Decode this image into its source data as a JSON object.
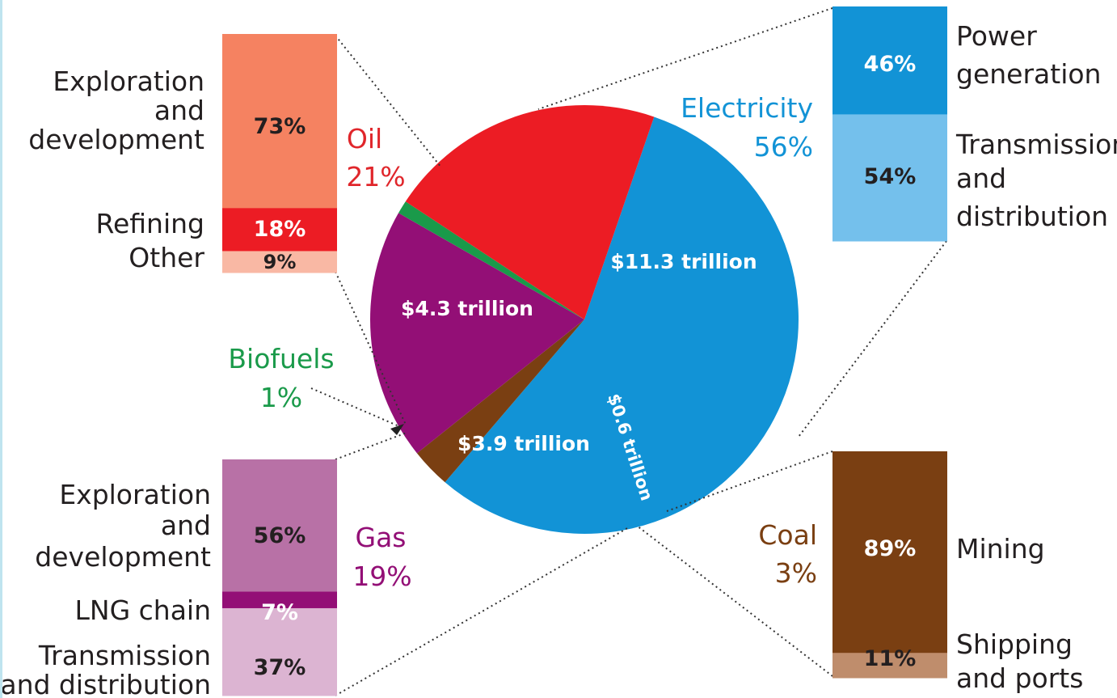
{
  "chart_data": {
    "type": "pie",
    "slices": [
      {
        "name": "Electricity",
        "percent": 56,
        "value_label": "$11.3 trillion",
        "percent_label": "56%",
        "color": "#1293d6"
      },
      {
        "name": "Coal",
        "percent": 3,
        "value_label": "$0.6 trillion",
        "percent_label": "3%",
        "color": "#7a3f12"
      },
      {
        "name": "Gas",
        "percent": 19,
        "value_label": "$3.9 trillion",
        "percent_label": "19%",
        "color": "#930f76"
      },
      {
        "name": "Biofuels",
        "percent": 1,
        "value_label": "",
        "percent_label": "1%",
        "color": "#1a9a4a"
      },
      {
        "name": "Oil",
        "percent": 21,
        "value_label": "$4.3 trillion",
        "percent_label": "21%",
        "color": "#ec1c24"
      }
    ],
    "breakdowns": {
      "oil": [
        {
          "label": "Exploration and development",
          "percent": 73,
          "percent_label": "73%",
          "color": "#f58261"
        },
        {
          "label": "Refining",
          "percent": 18,
          "percent_label": "18%",
          "color": "#ec1c24"
        },
        {
          "label": "Other",
          "percent": 9,
          "percent_label": "9%",
          "color": "#f9b8a4"
        }
      ],
      "electricity": [
        {
          "label": "Power generation",
          "percent": 46,
          "percent_label": "46%",
          "color": "#1293d6"
        },
        {
          "label": "Transmission and distribution",
          "percent": 54,
          "percent_label": "54%",
          "color": "#74c0ec"
        }
      ],
      "gas": [
        {
          "label": "Exploration and development",
          "percent": 56,
          "percent_label": "56%",
          "color": "#b871a6"
        },
        {
          "label": "LNG chain",
          "percent": 7,
          "percent_label": "7%",
          "color": "#930f76"
        },
        {
          "label": "Transmission and distribution",
          "percent": 37,
          "percent_label": "37%",
          "color": "#dcb4d2"
        }
      ],
      "coal": [
        {
          "label": "Mining",
          "percent": 89,
          "percent_label": "89%",
          "color": "#7a3f12"
        },
        {
          "label": "Shipping and ports",
          "percent": 11,
          "percent_label": "11%",
          "color": "#bf8d6c"
        }
      ]
    }
  },
  "text": {
    "oil_name": "Oil",
    "oil_pct": "21%",
    "electricity_name": "Electricity",
    "electricity_pct": "56%",
    "biofuels_name": "Biofuels",
    "biofuels_pct": "1%",
    "gas_name": "Gas",
    "gas_pct": "19%",
    "coal_name": "Coal",
    "coal_pct": "3%",
    "oil_expl_1": "Exploration",
    "oil_expl_2": "and",
    "oil_expl_3": "development",
    "oil_refining": "Refining",
    "oil_other": "Other",
    "elec_power_1": "Power",
    "elec_power_2": "generation",
    "elec_td_1": "Transmission",
    "elec_td_2": "and",
    "elec_td_3": "distribution",
    "gas_expl_1": "Exploration",
    "gas_expl_2": "and",
    "gas_expl_3": "development",
    "gas_lng": "LNG chain",
    "gas_td_1": "Transmission",
    "gas_td_2": "and distribution",
    "coal_mining": "Mining",
    "coal_ship_1": "Shipping",
    "coal_ship_2": "and ports"
  },
  "colors": {
    "oil_text": "#e0262b",
    "electricity_text": "#1293d6",
    "biofuels_text": "#1a9a4a",
    "gas_text": "#930f76",
    "coal_text": "#7a3f12",
    "category_text": "#231f20",
    "leader_line": "#333333"
  }
}
